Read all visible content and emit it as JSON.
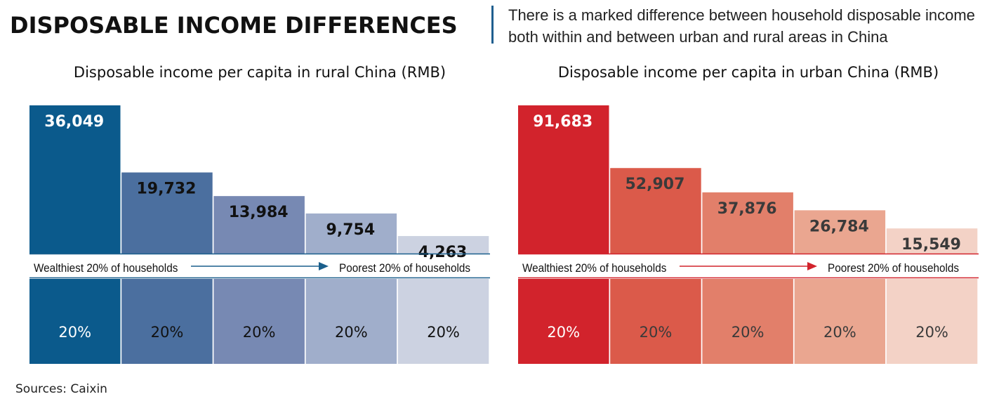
{
  "header": {
    "title": "DISPOSABLE INCOME DIFFERENCES",
    "subtitle": "There is a marked difference between household disposable income both within and between urban and rural areas in China"
  },
  "chart_data": [
    {
      "type": "bar",
      "title": "Disposable income per capita in rural China (RMB)",
      "categories": [
        "20%",
        "20%",
        "20%",
        "20%",
        "20%"
      ],
      "values": [
        36049,
        19732,
        13984,
        9754,
        4263
      ],
      "value_labels": [
        "36,049",
        "19,732",
        "13,984",
        "9,754",
        "4,263"
      ],
      "from_label": "Wealthiest 20% of households",
      "to_label": "Poorest 20% of households",
      "ylim": [
        0,
        36049
      ],
      "colors": [
        "#0b5a8c",
        "#4b6f9f",
        "#7789b3",
        "#a0aecb",
        "#ccd2e1"
      ],
      "label_colors": [
        "#ffffff",
        "#111111",
        "#111111",
        "#111111",
        "#111111"
      ],
      "accent": "#1a5f8c",
      "grid": false
    },
    {
      "type": "bar",
      "title": "Disposable income per capita in urban China (RMB)",
      "categories": [
        "20%",
        "20%",
        "20%",
        "20%",
        "20%"
      ],
      "values": [
        91683,
        52907,
        37876,
        26784,
        15549
      ],
      "value_labels": [
        "91,683",
        "52,907",
        "37,876",
        "26,784",
        "15,549"
      ],
      "from_label": "Wealthiest 20% of households",
      "to_label": "Poorest 20% of households",
      "ylim": [
        0,
        91683
      ],
      "colors": [
        "#d2232c",
        "#db5a4a",
        "#e27f6a",
        "#eaa690",
        "#f3d2c6"
      ],
      "label_colors": [
        "#ffffff",
        "#3a3a3a",
        "#3a3a3a",
        "#3a3a3a",
        "#3a3a3a"
      ],
      "accent": "#d2232c",
      "grid": false
    }
  ],
  "footer": {
    "sources": "Sources: Caixin"
  }
}
